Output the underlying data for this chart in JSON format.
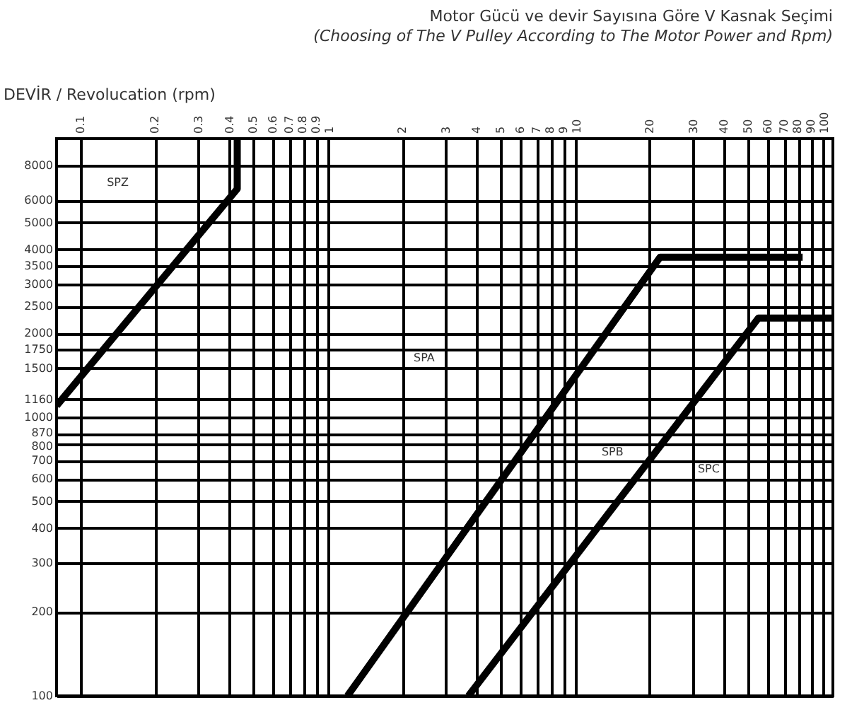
{
  "chart_data": {
    "type": "line",
    "title": "Motor Gücü ve devir Sayısına Göre V Kasnak Seçimi",
    "subtitle": "(Choosing of The V Pulley According to The Motor Power and Rpm)",
    "ylabel": "DEVİR / Revolucation (rpm)",
    "xlim": [
      0.08,
      110
    ],
    "xticks": [
      0.1,
      0.2,
      0.3,
      0.4,
      0.5,
      0.6,
      0.7,
      0.8,
      0.9,
      1,
      2,
      3,
      4,
      5,
      6,
      7,
      8,
      9,
      10,
      20,
      30,
      40,
      50,
      60,
      70,
      80,
      90,
      100
    ],
    "ylim": [
      100,
      10000
    ],
    "yticks": [
      100,
      200,
      300,
      400,
      500,
      600,
      700,
      800,
      870,
      1000,
      1160,
      1500,
      1750,
      2000,
      2500,
      3000,
      3500,
      4000,
      5000,
      6000,
      8000
    ],
    "grid": true,
    "legend": false,
    "marker": "none",
    "line_style": "solid",
    "series": [
      {
        "color": "#000000",
        "x": [
          0.08,
          0.43,
          0.43
        ],
        "values": [
          1100,
          6600,
          10000
        ]
      },
      {
        "color": "#000000",
        "x": [
          1.2,
          22,
          83
        ],
        "values": [
          100,
          3750,
          3750
        ]
      },
      {
        "color": "#000000",
        "x": [
          3.7,
          55,
          110
        ],
        "values": [
          100,
          2270,
          2270
        ]
      }
    ],
    "log": "xy",
    "annotations": [
      "SPZ",
      "SPA",
      "SPB",
      "SPC"
    ]
  }
}
